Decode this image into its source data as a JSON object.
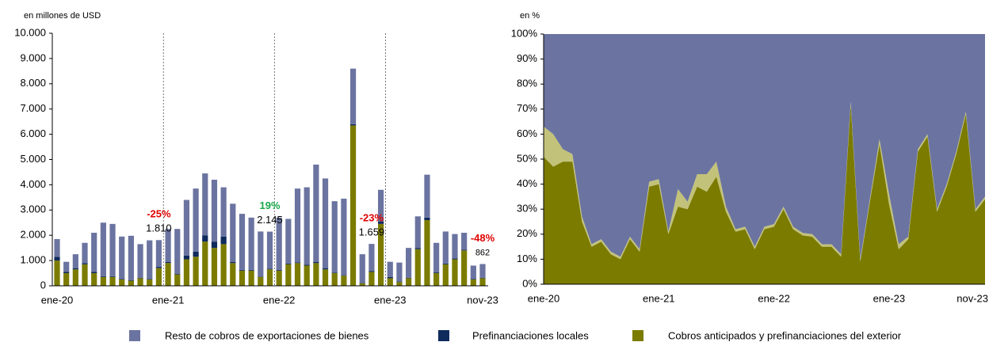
{
  "chart_data": [
    {
      "type": "stacked_bar",
      "axis_label": "en millones de USD",
      "categories": [
        "ene-20",
        null,
        null,
        null,
        null,
        null,
        null,
        null,
        null,
        null,
        null,
        null,
        "ene-21",
        null,
        null,
        null,
        null,
        null,
        null,
        null,
        null,
        null,
        null,
        null,
        "ene-22",
        null,
        null,
        null,
        null,
        null,
        null,
        null,
        null,
        null,
        null,
        null,
        "ene-23",
        null,
        null,
        null,
        null,
        null,
        null,
        null,
        null,
        null,
        "nov-23"
      ],
      "series": [
        {
          "name": "Resto de cobros de exportaciones de bienes",
          "color": "#6b74a0",
          "values": [
            700,
            400,
            550,
            800,
            1550,
            2120,
            2070,
            1680,
            1760,
            1330,
            1530,
            1060,
            1300,
            1770,
            2200,
            2500,
            2450,
            2450,
            1950,
            2300,
            2220,
            2070,
            1780,
            1465,
            2070,
            1770,
            2920,
            3070,
            3850,
            3550,
            2830,
            3030,
            2200,
            1130,
            1079,
            1250,
            600,
            750,
            1180,
            1250,
            1700,
            1170,
            1270,
            970,
            670,
            530,
            542
          ]
        },
        {
          "name": "Prefinanciaciones locales",
          "color": "#0f2a5c",
          "values": [
            150,
            50,
            50,
            50,
            50,
            30,
            30,
            20,
            20,
            20,
            20,
            50,
            50,
            30,
            150,
            200,
            250,
            250,
            300,
            50,
            30,
            30,
            20,
            30,
            30,
            30,
            30,
            30,
            50,
            50,
            20,
            20,
            50,
            20,
            30,
            100,
            50,
            20,
            20,
            50,
            100,
            30,
            30,
            30,
            30,
            20,
            20
          ]
        },
        {
          "name": "Cobros anticipados y prefinanciaciones del exterior",
          "color": "#7b7b00",
          "values": [
            1000,
            500,
            650,
            850,
            500,
            350,
            350,
            250,
            200,
            300,
            250,
            700,
            900,
            450,
            1050,
            1150,
            1750,
            1500,
            1650,
            900,
            600,
            600,
            350,
            650,
            600,
            850,
            900,
            800,
            900,
            650,
            500,
            400,
            6350,
            100,
            550,
            2450,
            300,
            150,
            300,
            1450,
            2600,
            500,
            850,
            1050,
            1400,
            250,
            300
          ]
        }
      ],
      "ylim": [
        0,
        10000
      ],
      "yticks": [
        0,
        {
          "value": 1000,
          "label": "1.000"
        },
        {
          "value": 2000,
          "label": "2.000"
        },
        {
          "value": 3000,
          "label": "3.000"
        },
        {
          "value": 4000,
          "label": "4.000"
        },
        {
          "value": 5000,
          "label": "5.000"
        },
        {
          "value": 6000,
          "label": "6.000"
        },
        {
          "value": 7000,
          "label": "7.000"
        },
        {
          "value": 8000,
          "label": "8.000"
        },
        {
          "value": 9000,
          "label": "9.000"
        },
        {
          "value": 10000,
          "label": "10.000"
        }
      ],
      "annotations": [
        {
          "text": "-25%",
          "color": "#e00000",
          "label": "1.810"
        },
        {
          "text": "19%",
          "color": "#1aa84a",
          "label": "2.145"
        },
        {
          "text": "-23%",
          "color": "#e00000",
          "label": "1.659"
        },
        {
          "text": "-48%",
          "color": "#e00000",
          "label": "862"
        }
      ]
    },
    {
      "type": "stacked_area",
      "axis_label": "en %",
      "categories": [
        "ene-20",
        null,
        null,
        null,
        null,
        null,
        null,
        null,
        null,
        null,
        null,
        null,
        "ene-21",
        null,
        null,
        null,
        null,
        null,
        null,
        null,
        null,
        null,
        null,
        null,
        "ene-22",
        null,
        null,
        null,
        null,
        null,
        null,
        null,
        null,
        null,
        null,
        null,
        "ene-23",
        null,
        null,
        null,
        null,
        null,
        null,
        null,
        null,
        null,
        "nov-23"
      ],
      "series": [
        {
          "name": "Resto de cobros de exportaciones de bienes",
          "color": "#6b74a0",
          "values": [
            37,
            40,
            46,
            48,
            73,
            84,
            82,
            87,
            89,
            81,
            86,
            59,
            58,
            79,
            62,
            67,
            56,
            56,
            51,
            69,
            78,
            77,
            85,
            77,
            76,
            69,
            77,
            79.5,
            80,
            84,
            84,
            88,
            27,
            90,
            66,
            42,
            64,
            84,
            81,
            46,
            40,
            70,
            60,
            47,
            31,
            70,
            65
          ]
        },
        {
          "name": "Prefinanciaciones locales",
          "color": "#c2c27a",
          "values": [
            12,
            13,
            5,
            3,
            2,
            1,
            1,
            1,
            1,
            1,
            1,
            2,
            2,
            1,
            7,
            3,
            5,
            7,
            6,
            2,
            1,
            1,
            1,
            1,
            1,
            1,
            1,
            1,
            1,
            1,
            1,
            1,
            1,
            1,
            1,
            2,
            4,
            2,
            1,
            1,
            1,
            1,
            1,
            1,
            1,
            1,
            1
          ]
        },
        {
          "name": "Cobros anticipados y prefinanciaciones del exterior",
          "color": "#7b7b00",
          "values": [
            51,
            47,
            49,
            49,
            25,
            15,
            17,
            12,
            10,
            18,
            13,
            39,
            40,
            20,
            31,
            30,
            39,
            37,
            43,
            29,
            21,
            22,
            14,
            22,
            23,
            30,
            22,
            19.5,
            19,
            15,
            15,
            11,
            72,
            9,
            33,
            56,
            32,
            14,
            18,
            53,
            59,
            29,
            39,
            52,
            68,
            29,
            34
          ]
        }
      ],
      "ylim": [
        0,
        100
      ],
      "yticks": [
        {
          "value": 0,
          "label": "0%"
        },
        {
          "value": 10,
          "label": "10%"
        },
        {
          "value": 20,
          "label": "20%"
        },
        {
          "value": 30,
          "label": "30%"
        },
        {
          "value": 40,
          "label": "40%"
        },
        {
          "value": 50,
          "label": "50%"
        },
        {
          "value": 60,
          "label": "60%"
        },
        {
          "value": 70,
          "label": "70%"
        },
        {
          "value": 80,
          "label": "80%"
        },
        {
          "value": 90,
          "label": "90%"
        },
        {
          "value": 100,
          "label": "100%"
        }
      ]
    }
  ]
}
